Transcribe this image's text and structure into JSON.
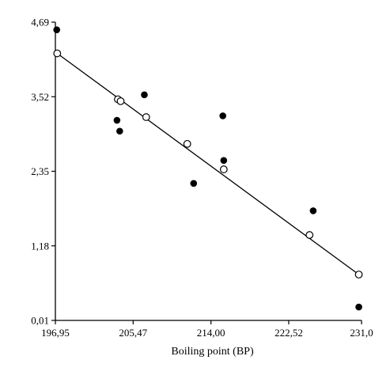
{
  "chart_data": {
    "type": "scatter",
    "title": "",
    "xlabel": "Boiling point (BP)",
    "ylabel": "",
    "xlim": [
      196.95,
      230.5
    ],
    "ylim": [
      0.01,
      4.69
    ],
    "x_ticks": [
      196.95,
      205.47,
      214.0,
      222.52,
      231.0
    ],
    "x_tick_labels": [
      "196,95",
      "205,47",
      "214,00",
      "222,52",
      "231,0"
    ],
    "y_ticks": [
      0.01,
      1.18,
      2.35,
      3.52,
      4.69
    ],
    "y_tick_labels": [
      "0,01",
      "1,18",
      "2,35",
      "3,52",
      "4,69"
    ],
    "grid": false,
    "series": [
      {
        "marker": "filled-circle",
        "color": "#000000",
        "points": [
          [
            197.1,
            4.57
          ],
          [
            203.7,
            3.15
          ],
          [
            204.0,
            2.98
          ],
          [
            206.7,
            3.55
          ],
          [
            212.1,
            2.16
          ],
          [
            215.3,
            3.22
          ],
          [
            215.4,
            2.52
          ],
          [
            225.2,
            1.73
          ],
          [
            230.2,
            0.22
          ]
        ]
      },
      {
        "marker": "open-circle",
        "color": "#ffffff",
        "points": [
          [
            197.15,
            4.2
          ],
          [
            203.8,
            3.48
          ],
          [
            204.1,
            3.45
          ],
          [
            206.9,
            3.2
          ],
          [
            211.4,
            2.78
          ],
          [
            215.4,
            2.38
          ],
          [
            224.8,
            1.35
          ],
          [
            230.2,
            0.73
          ]
        ]
      }
    ],
    "trendline": {
      "x": [
        197.15,
        230.2
      ],
      "y": [
        4.2,
        0.73
      ]
    }
  }
}
